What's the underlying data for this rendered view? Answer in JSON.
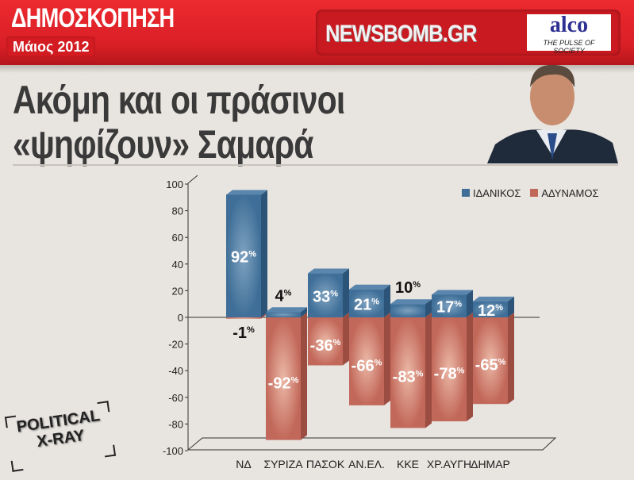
{
  "header": {
    "kicker": "ΔΗΜΟΣΚΟΠΗΣΗ",
    "date": "Μάιος 2012",
    "brand": "NEWSBOMB.GR",
    "partner_logo": "alco",
    "partner_tagline": "THE PULSE OF SOCIETY"
  },
  "headline": {
    "line1": "Ακόμη και οι πράσινοι",
    "line2": "«ψηφίζουν» Σαμαρά"
  },
  "badge": {
    "line1": "POLITICAL",
    "line2": "X-RAY"
  },
  "colors": {
    "header_red": "#e3232a",
    "ideal": "#3f6f98",
    "weak": "#c2685a"
  },
  "chart_data": {
    "type": "bar",
    "title": "",
    "categories": [
      "ΝΔ",
      "ΣΥΡΙΖΑ",
      "ΠΑΣΟΚ",
      "ΑΝ.ΕΛ.",
      "ΚΚΕ",
      "ΧΡ.ΑΥΓΗ",
      "ΔΗΜΑΡ"
    ],
    "series": [
      {
        "name": "ΙΔΑΝΙΚΟΣ",
        "color": "#3f6f98",
        "values": [
          92,
          4,
          33,
          21,
          10,
          17,
          12
        ]
      },
      {
        "name": "ΑΔΥΝΑΜΟΣ",
        "color": "#c2685a",
        "values": [
          -1,
          -92,
          -36,
          -66,
          -83,
          -78,
          -65
        ]
      }
    ],
    "ylim": [
      -100,
      100
    ],
    "yticks": [
      100,
      80,
      60,
      40,
      20,
      0,
      -20,
      -40,
      -60,
      -80,
      -100
    ],
    "legend": "top-right",
    "grid": false,
    "style": "3d"
  }
}
